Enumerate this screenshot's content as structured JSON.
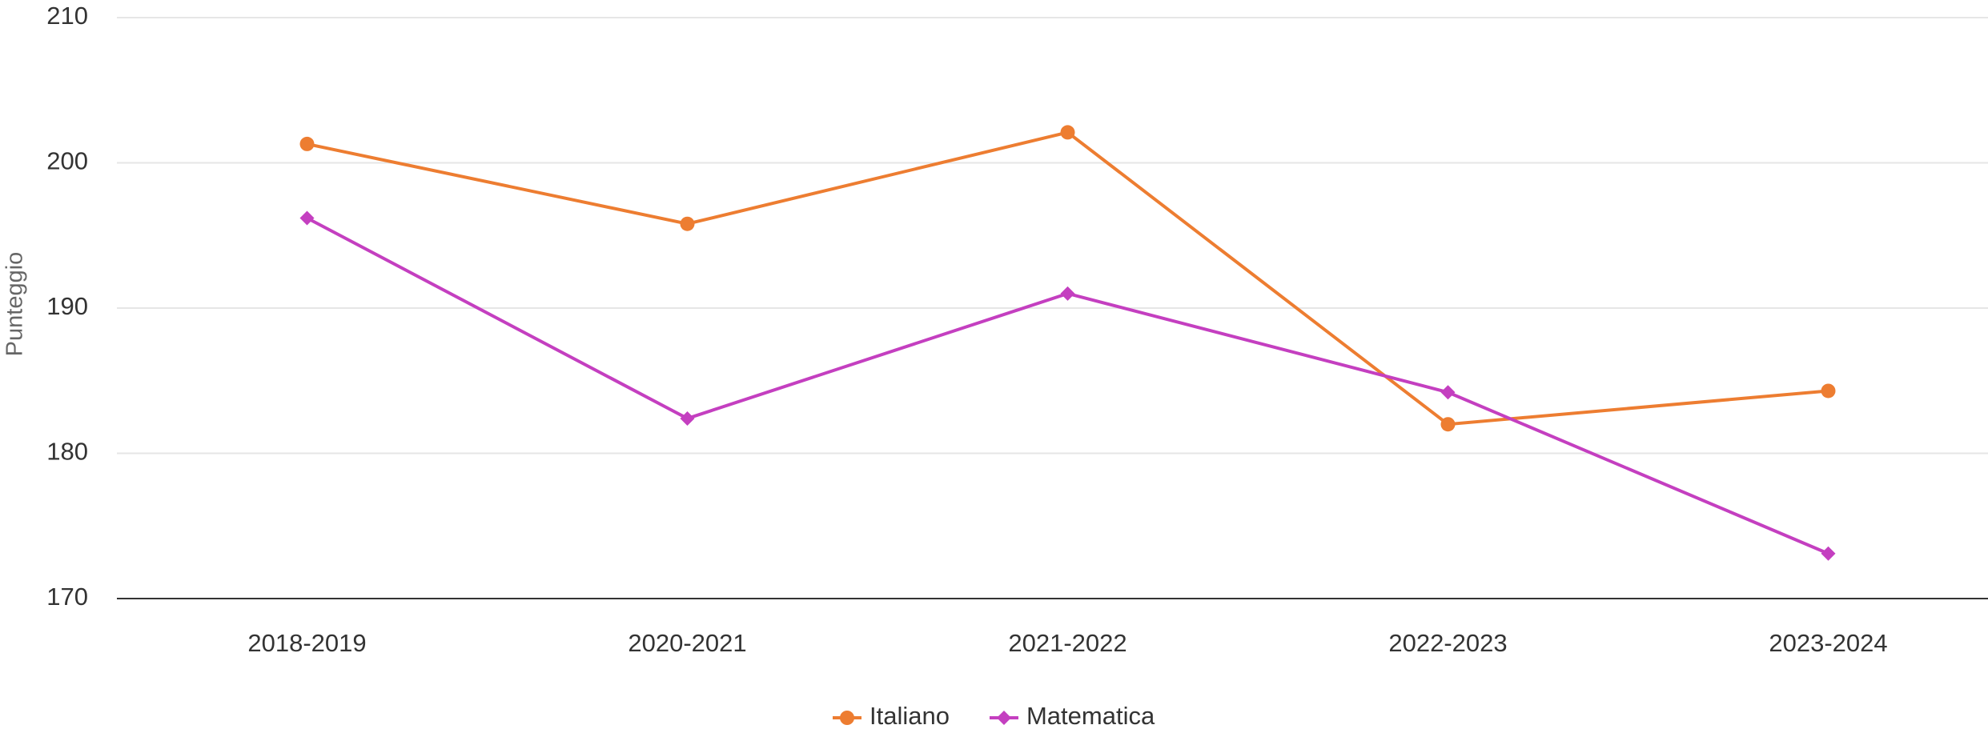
{
  "chart_data": {
    "type": "line",
    "y_label": "Punteggio",
    "categories": [
      "2018-2019",
      "2020-2021",
      "2021-2022",
      "2022-2023",
      "2023-2024"
    ],
    "series": [
      {
        "name": "Italiano",
        "color": "#ed7d31",
        "marker": "circle",
        "values": [
          201.3,
          195.8,
          202.1,
          182.0,
          184.3
        ]
      },
      {
        "name": "Matematica",
        "color": "#c43fc0",
        "marker": "diamond",
        "values": [
          196.2,
          182.4,
          191.0,
          184.2,
          173.1
        ]
      }
    ],
    "ylim": [
      170,
      210
    ],
    "yticks": [
      170,
      180,
      190,
      200,
      210
    ],
    "grid": true,
    "legend": "bottom"
  }
}
